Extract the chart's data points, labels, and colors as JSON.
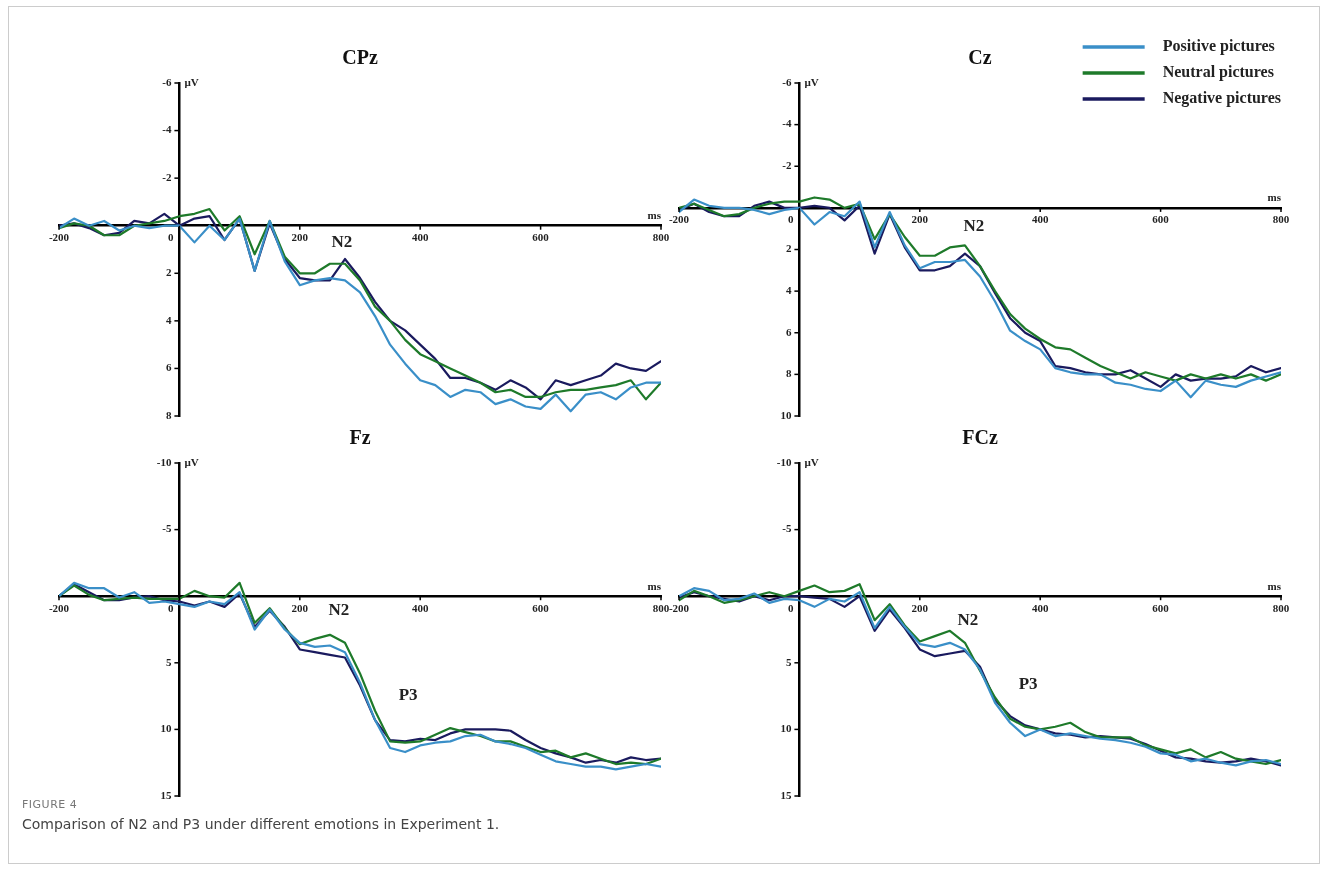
{
  "chart_data": [
    {
      "type": "line",
      "title": "CPz",
      "xlabel": "ms",
      "ylabel": "µV",
      "x": [
        -200,
        -175,
        -150,
        -125,
        -100,
        -75,
        -50,
        -25,
        0,
        25,
        50,
        75,
        100,
        125,
        150,
        175,
        200,
        225,
        250,
        275,
        300,
        325,
        350,
        375,
        400,
        425,
        450,
        475,
        500,
        525,
        550,
        575,
        600,
        625,
        650,
        675,
        700,
        725,
        750,
        775,
        800
      ],
      "xlim": [
        -200,
        800
      ],
      "xticks": [
        -200,
        0,
        200,
        400,
        600,
        800
      ],
      "ylim": [
        8,
        -6
      ],
      "yticks": [
        -6,
        -4,
        -2,
        2,
        4,
        6,
        8
      ],
      "legend": false,
      "annotations": [
        "N2",
        "FIGURE 4",
        "Comparison of N2 and P3 under different emotions in Experiment 1."
      ],
      "series": [
        {
          "color": "#3a8fc8",
          "values": [
            0.1,
            -0.3,
            0,
            -0.2,
            0.2,
            0,
            0.1,
            0,
            0,
            0.7,
            0,
            0.6,
            -0.3,
            1.9,
            -0.2,
            1.5,
            2.5,
            2.3,
            2.2,
            2.3,
            2.8,
            3.8,
            5.0,
            5.8,
            6.5,
            6.7,
            7.2,
            6.9,
            7.0,
            7.5,
            7.3,
            7.6,
            7.7,
            7.1,
            7.8,
            7.1,
            7.0,
            7.3,
            6.8,
            6.6,
            6.6
          ]
        },
        {
          "color": "#1e7a2a",
          "values": [
            0.1,
            -0.1,
            0,
            0.4,
            0.4,
            0,
            -0.1,
            -0.2,
            -0.4,
            -0.5,
            -0.7,
            0.2,
            -0.4,
            1.2,
            -0.2,
            1.3,
            2.0,
            2.0,
            1.6,
            1.6,
            2.3,
            3.4,
            4.0,
            4.8,
            5.4,
            5.7,
            6.0,
            6.3,
            6.6,
            7.0,
            6.9,
            7.2,
            7.2,
            7.0,
            6.9,
            6.9,
            6.8,
            6.7,
            6.5,
            7.3,
            6.6
          ]
        },
        {
          "color": "#1a1a5e",
          "values": [
            0,
            -0.1,
            0.1,
            0.4,
            0.3,
            -0.2,
            -0.1,
            -0.5,
            0,
            -0.3,
            -0.4,
            0.6,
            -0.3,
            1.9,
            -0.1,
            1.4,
            2.2,
            2.3,
            2.3,
            1.4,
            2.2,
            3.2,
            4.0,
            4.4,
            5.0,
            5.6,
            6.4,
            6.4,
            6.6,
            6.9,
            6.5,
            6.8,
            7.3,
            6.5,
            6.7,
            6.5,
            6.3,
            5.8,
            6.0,
            6.1,
            5.7
          ]
        }
      ]
    },
    {
      "type": "line",
      "title": "Cz",
      "xlabel": "ms",
      "ylabel": "µV",
      "x": [
        -200,
        -175,
        -150,
        -125,
        -100,
        -75,
        -50,
        -25,
        0,
        25,
        50,
        75,
        100,
        125,
        150,
        175,
        200,
        225,
        250,
        275,
        300,
        325,
        350,
        375,
        400,
        425,
        450,
        475,
        500,
        525,
        550,
        575,
        600,
        625,
        650,
        675,
        700,
        725,
        750,
        775,
        800
      ],
      "xlim": [
        -200,
        800
      ],
      "xticks": [
        -200,
        0,
        200,
        400,
        600,
        800
      ],
      "ylim": [
        10,
        -6
      ],
      "yticks": [
        -6,
        -4,
        -2,
        2,
        4,
        6,
        8,
        10
      ],
      "legend": "top right",
      "annotations": [
        "N2"
      ],
      "series": [
        {
          "name": "Positive pictures",
          "color": "#3a8fc8",
          "values": [
            0.2,
            -0.4,
            -0.1,
            0,
            0,
            0.1,
            0.3,
            0.1,
            0,
            0.8,
            0.2,
            0.4,
            -0.3,
            1.9,
            0.2,
            1.8,
            2.9,
            2.6,
            2.6,
            2.5,
            3.3,
            4.5,
            5.9,
            6.4,
            6.8,
            7.7,
            7.9,
            8.0,
            8.0,
            8.4,
            8.5,
            8.7,
            8.8,
            8.3,
            9.1,
            8.3,
            8.5,
            8.6,
            8.3,
            8.1,
            7.9
          ]
        },
        {
          "name": "Neutral pictures",
          "color": "#1e7a2a",
          "values": [
            0,
            -0.2,
            0.1,
            0.4,
            0.3,
            0,
            -0.2,
            -0.3,
            -0.3,
            -0.5,
            -0.4,
            0,
            -0.2,
            1.5,
            0.3,
            1.4,
            2.3,
            2.3,
            1.9,
            1.8,
            2.8,
            4.0,
            5.1,
            5.8,
            6.3,
            6.7,
            6.8,
            7.2,
            7.6,
            7.9,
            8.2,
            7.9,
            8.1,
            8.3,
            8.0,
            8.2,
            8.0,
            8.2,
            8.0,
            8.3,
            8.0
          ]
        },
        {
          "name": "Negative pictures",
          "color": "#1a1a5e",
          "values": [
            0.1,
            -0.2,
            0.2,
            0.4,
            0.4,
            -0.1,
            -0.3,
            0,
            0,
            -0.1,
            0,
            0.6,
            -0.1,
            2.2,
            0.3,
            1.9,
            3.0,
            3.0,
            2.8,
            2.2,
            2.8,
            4.1,
            5.3,
            6.0,
            6.4,
            7.6,
            7.7,
            7.9,
            8.0,
            8.0,
            7.8,
            8.2,
            8.6,
            8.0,
            8.3,
            8.2,
            8.2,
            8.1,
            7.6,
            7.9,
            7.7
          ]
        }
      ]
    },
    {
      "type": "line",
      "title": "Fz",
      "xlabel": "ms",
      "ylabel": "µV",
      "x": [
        -200,
        -175,
        -150,
        -125,
        -100,
        -75,
        -50,
        -25,
        0,
        25,
        50,
        75,
        100,
        125,
        150,
        175,
        200,
        225,
        250,
        275,
        300,
        325,
        350,
        375,
        400,
        425,
        450,
        475,
        500,
        525,
        550,
        575,
        600,
        625,
        650,
        675,
        700,
        725,
        750,
        775,
        800
      ],
      "xlim": [
        -200,
        800
      ],
      "xticks": [
        -200,
        0,
        200,
        400,
        600,
        800
      ],
      "ylim": [
        15,
        -10
      ],
      "yticks": [
        -10,
        -5,
        5,
        10,
        15
      ],
      "legend": false,
      "annotations": [
        "N2",
        "P3"
      ],
      "series": [
        {
          "color": "#3a8fc8",
          "values": [
            0,
            -1.0,
            -0.6,
            -0.6,
            0.1,
            -0.3,
            0.5,
            0.4,
            0.6,
            0.8,
            0.4,
            0.6,
            -0.3,
            2.5,
            1.0,
            2.5,
            3.5,
            3.8,
            3.7,
            4.2,
            6.5,
            9.3,
            11.4,
            11.7,
            11.2,
            11.0,
            10.9,
            10.5,
            10.4,
            10.9,
            11.1,
            11.4,
            11.9,
            12.4,
            12.6,
            12.8,
            12.8,
            13.0,
            12.8,
            12.6,
            12.8
          ]
        },
        {
          "color": "#1e7a2a",
          "values": [
            0,
            -0.8,
            -0.1,
            0.3,
            0.2,
            0.1,
            0.2,
            0.2,
            0.2,
            -0.4,
            0,
            0.1,
            -1.0,
            2.0,
            0.9,
            2.4,
            3.6,
            3.2,
            2.9,
            3.5,
            5.8,
            8.6,
            10.9,
            11.0,
            10.9,
            10.4,
            9.9,
            10.2,
            10.5,
            10.9,
            10.9,
            11.3,
            11.7,
            11.6,
            12.1,
            11.8,
            12.2,
            12.6,
            12.5,
            12.6,
            12.2
          ]
        },
        {
          "color": "#1a1a5e",
          "values": [
            0,
            -0.9,
            -0.3,
            0.3,
            0.3,
            0.1,
            0,
            0.3,
            0.4,
            0.7,
            0.4,
            0.8,
            -0.2,
            2.3,
            1.1,
            2.3,
            4.0,
            4.2,
            4.4,
            4.6,
            6.7,
            9.3,
            10.8,
            10.9,
            10.7,
            10.8,
            10.3,
            10.0,
            10.0,
            10.0,
            10.1,
            10.8,
            11.4,
            11.8,
            12.1,
            12.5,
            12.3,
            12.5,
            12.1,
            12.3,
            12.2
          ]
        }
      ]
    },
    {
      "type": "line",
      "title": "FCz",
      "xlabel": "ms",
      "ylabel": "µV",
      "x": [
        -200,
        -175,
        -150,
        -125,
        -100,
        -75,
        -50,
        -25,
        0,
        25,
        50,
        75,
        100,
        125,
        150,
        175,
        200,
        225,
        250,
        275,
        300,
        325,
        350,
        375,
        400,
        425,
        450,
        475,
        500,
        525,
        550,
        575,
        600,
        625,
        650,
        675,
        700,
        725,
        750,
        775,
        800
      ],
      "xlim": [
        -200,
        800
      ],
      "xticks": [
        -200,
        0,
        200,
        400,
        600,
        800
      ],
      "ylim": [
        15,
        -10
      ],
      "yticks": [
        -10,
        -5,
        5,
        10,
        15
      ],
      "legend": false,
      "annotations": [
        "N2",
        "P3"
      ],
      "series": [
        {
          "color": "#3a8fc8",
          "values": [
            0,
            -0.6,
            -0.4,
            0.3,
            0.2,
            -0.2,
            0.5,
            0.2,
            0.3,
            0.8,
            0.2,
            0.4,
            -0.3,
            2.4,
            0.8,
            2.3,
            3.6,
            3.8,
            3.5,
            4.0,
            5.5,
            8.0,
            9.5,
            10.5,
            10.0,
            10.5,
            10.3,
            10.5,
            10.7,
            10.8,
            11.0,
            11.3,
            11.8,
            11.9,
            12.4,
            12.2,
            12.5,
            12.7,
            12.4,
            12.3,
            12.6
          ]
        },
        {
          "color": "#1e7a2a",
          "values": [
            0.3,
            -0.4,
            0,
            0.5,
            0.3,
            0,
            -0.3,
            0,
            -0.4,
            -0.8,
            -0.3,
            -0.4,
            -0.9,
            1.8,
            0.6,
            2.2,
            3.4,
            3.0,
            2.6,
            3.5,
            5.6,
            7.6,
            9.2,
            9.8,
            10.0,
            9.8,
            9.5,
            10.2,
            10.6,
            10.6,
            10.6,
            11.2,
            11.5,
            11.8,
            11.5,
            12.1,
            11.7,
            12.2,
            12.4,
            12.6,
            12.3
          ]
        },
        {
          "color": "#1a1a5e",
          "values": [
            0.1,
            -0.3,
            0,
            0.2,
            0.4,
            0,
            0.3,
            0,
            0,
            0.1,
            0.2,
            0.8,
            0,
            2.6,
            1.0,
            2.4,
            4.0,
            4.5,
            4.3,
            4.1,
            5.3,
            7.8,
            9.0,
            9.7,
            10.0,
            10.3,
            10.4,
            10.6,
            10.5,
            10.6,
            10.7,
            11.1,
            11.6,
            12.1,
            12.2,
            12.4,
            12.5,
            12.4,
            12.2,
            12.4,
            12.7
          ]
        }
      ]
    }
  ]
}
